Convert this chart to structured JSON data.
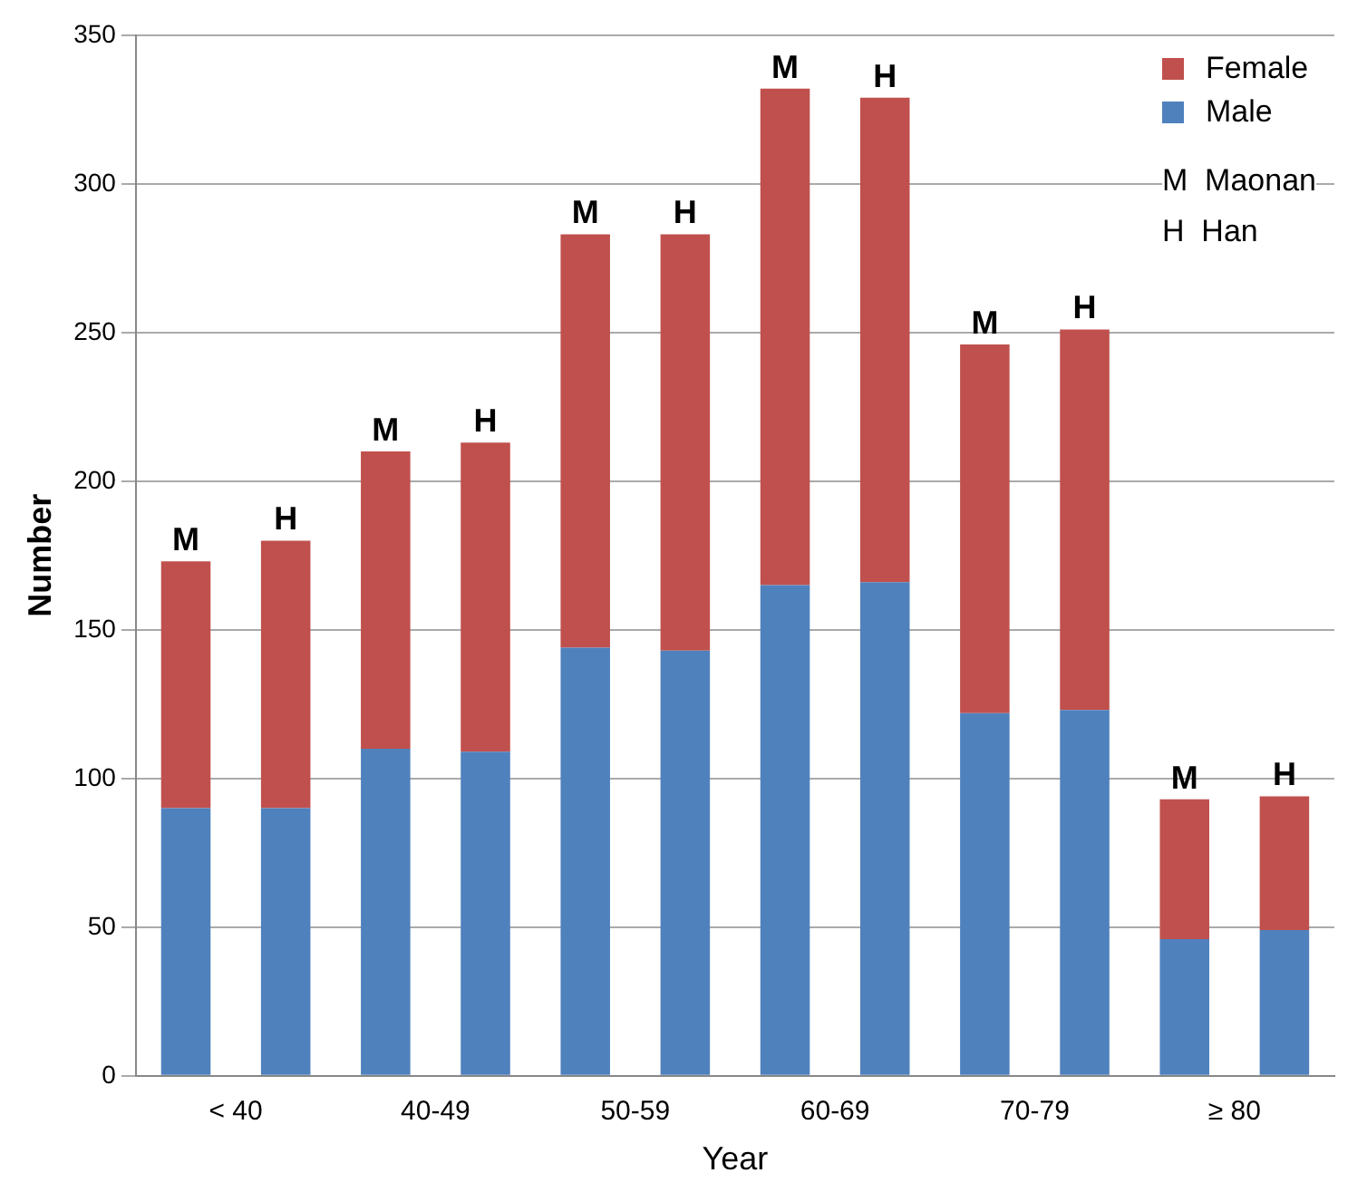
{
  "chart_data": {
    "type": "bar",
    "stacked": true,
    "xlabel": "Year",
    "ylabel": "Number",
    "categories": [
      "< 40",
      null,
      "40-49",
      null,
      "50-59",
      null,
      "60-69",
      null,
      "70-79",
      null,
      "≥ 80",
      null
    ],
    "series": [
      {
        "name": "Male",
        "color": "#4f81bd",
        "values": [
          90,
          90,
          110,
          109,
          144,
          143,
          165,
          166,
          122,
          123,
          46,
          49
        ]
      },
      {
        "name": "Female",
        "color": "#c0504d",
        "values": [
          83,
          90,
          100,
          104,
          139,
          140,
          167,
          163,
          124,
          128,
          47,
          45
        ],
        "value_labels": [
          "M",
          "H",
          "M",
          "H",
          "M",
          "H",
          "M",
          "H",
          "M",
          "H",
          "M",
          "H"
        ]
      }
    ],
    "ylim": [
      0,
      350
    ],
    "yticks": [
      0,
      50,
      100,
      150,
      200,
      250,
      300,
      350
    ],
    "grid": "y",
    "legend": "top right",
    "annotations": [
      "M  Maonan",
      "H  Han"
    ]
  }
}
